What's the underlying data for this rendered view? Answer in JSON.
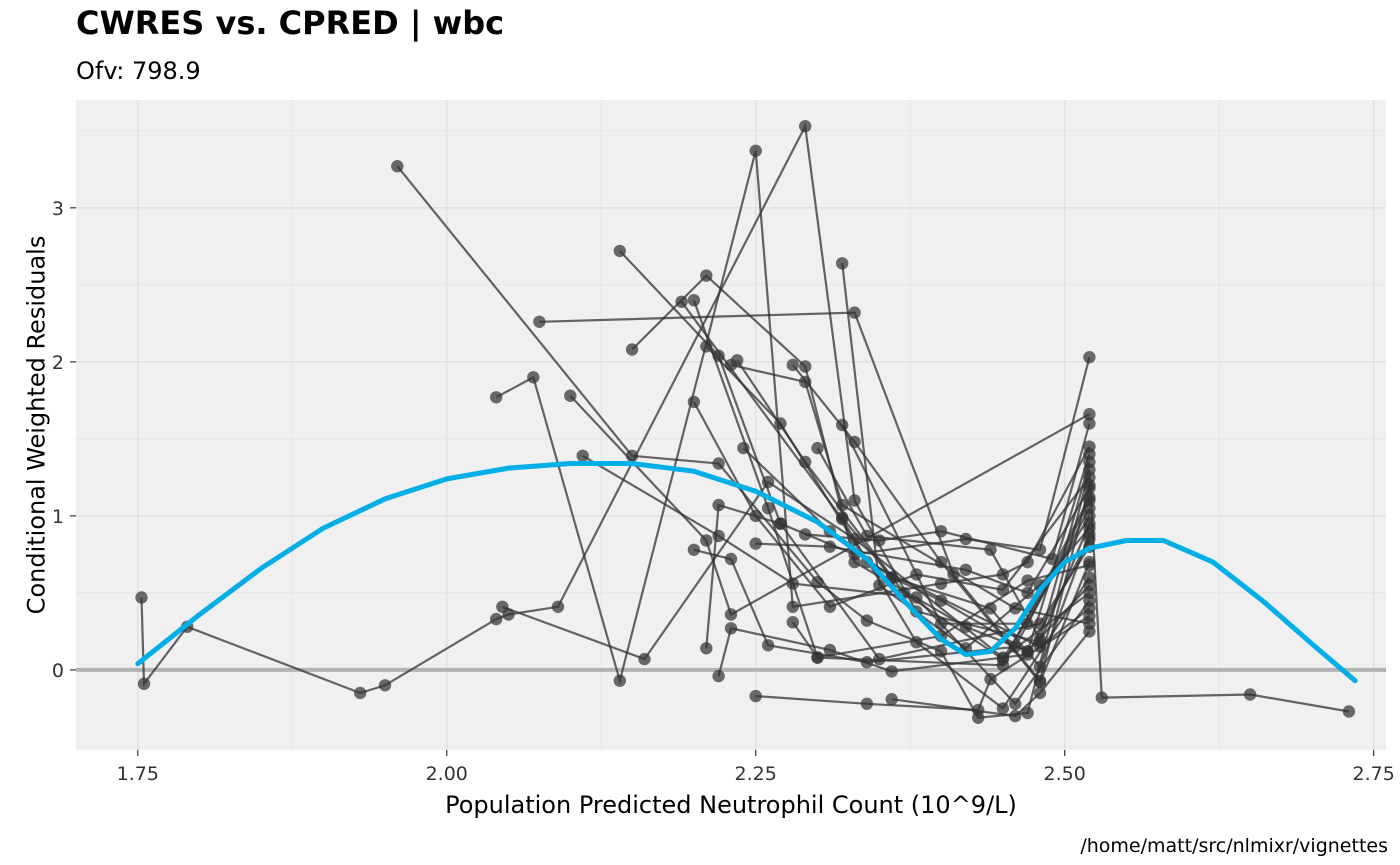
{
  "chart_data": {
    "type": "scatter",
    "title": "CWRES vs. CPRED | wbc",
    "subtitle": "Ofv: 798.9",
    "xlabel": "Population Predicted Neutrophil Count (10^9/L)",
    "ylabel": "Conditional Weighted Residuals",
    "caption": "/home/matt/src/nlmixr/vignettes",
    "xlim": [
      1.7,
      2.76
    ],
    "ylim": [
      -0.52,
      3.7
    ],
    "x_ticks": [
      1.75,
      2.0,
      2.25,
      2.5,
      2.75
    ],
    "x_tick_labels": [
      "1.75",
      "2.00",
      "2.25",
      "2.50",
      "2.75"
    ],
    "y_ticks": [
      0,
      1,
      2,
      3
    ],
    "y_tick_labels": [
      "0",
      "1",
      "2",
      "3"
    ],
    "grid": true,
    "reference_line_y": 0,
    "colors": {
      "panel_background": "#f0f0f0",
      "grid": "#e0e0e0",
      "points": "#333333",
      "lines": "#333333",
      "smooth": "#00aee8",
      "reference_line": "#b3b3b3"
    },
    "series": [
      {
        "points": [
          [
            1.753,
            0.47
          ],
          [
            1.755,
            -0.09
          ],
          [
            1.79,
            0.28
          ],
          [
            1.93,
            -0.15
          ],
          [
            1.95,
            -0.1
          ],
          [
            2.04,
            0.33
          ],
          [
            2.05,
            0.36
          ],
          [
            2.09,
            0.41
          ],
          [
            2.29,
            3.53
          ],
          [
            2.33,
            1.1
          ],
          [
            2.38,
            0.38
          ],
          [
            2.48,
            0.18
          ],
          [
            2.52,
            0.95
          ]
        ]
      },
      {
        "points": [
          [
            1.96,
            3.27
          ],
          [
            2.15,
            1.39
          ],
          [
            2.22,
            1.34
          ],
          [
            2.3,
            0.57
          ],
          [
            2.34,
            0.32
          ],
          [
            2.4,
            0.12
          ],
          [
            2.43,
            -0.31
          ],
          [
            2.47,
            -0.28
          ],
          [
            2.52,
            1.3
          ],
          [
            2.53,
            -0.18
          ],
          [
            2.65,
            -0.16
          ],
          [
            2.73,
            -0.27
          ]
        ]
      },
      {
        "points": [
          [
            2.04,
            1.77
          ],
          [
            2.07,
            1.9
          ],
          [
            2.14,
            -0.07
          ],
          [
            2.25,
            3.37
          ],
          [
            2.28,
            0.41
          ],
          [
            2.4,
            0.56
          ],
          [
            2.45,
            0.62
          ],
          [
            2.47,
            0.7
          ],
          [
            2.52,
            1.45
          ]
        ]
      },
      {
        "points": [
          [
            2.045,
            0.41
          ],
          [
            2.16,
            0.07
          ],
          [
            2.26,
            1.22
          ],
          [
            2.33,
            0.85
          ],
          [
            2.45,
            0.08
          ],
          [
            2.52,
            0.5
          ]
        ]
      },
      {
        "points": [
          [
            2.075,
            2.26
          ],
          [
            2.33,
            2.32
          ],
          [
            2.41,
            0.62
          ],
          [
            2.48,
            -0.07
          ],
          [
            2.52,
            1.2
          ]
        ]
      },
      {
        "points": [
          [
            2.1,
            1.78
          ],
          [
            2.21,
            0.84
          ],
          [
            2.23,
            0.36
          ],
          [
            2.52,
            1.66
          ]
        ]
      },
      {
        "points": [
          [
            2.14,
            2.72
          ],
          [
            2.22,
            2.04
          ],
          [
            2.27,
            0.95
          ],
          [
            2.35,
            0.07
          ],
          [
            2.48,
            0.3
          ],
          [
            2.52,
            0.8
          ]
        ]
      },
      {
        "points": [
          [
            2.15,
            2.08
          ],
          [
            2.21,
            2.56
          ],
          [
            2.29,
            1.97
          ],
          [
            2.33,
            0.7
          ],
          [
            2.42,
            0.28
          ],
          [
            2.47,
            0.12
          ],
          [
            2.52,
            1.4
          ]
        ]
      },
      {
        "points": [
          [
            2.19,
            2.39
          ],
          [
            2.32,
            0.98
          ],
          [
            2.38,
            0.18
          ],
          [
            2.45,
            -0.25
          ],
          [
            2.52,
            0.6
          ]
        ]
      },
      {
        "points": [
          [
            2.2,
            2.4
          ],
          [
            2.26,
            1.05
          ],
          [
            2.3,
            0.08
          ],
          [
            2.45,
            0.03
          ],
          [
            2.52,
            1.12
          ]
        ]
      },
      {
        "points": [
          [
            2.2,
            1.74
          ],
          [
            2.25,
            1.0
          ],
          [
            2.31,
            0.41
          ],
          [
            2.38,
            0.62
          ],
          [
            2.45,
            0.52
          ],
          [
            2.52,
            1.25
          ]
        ]
      },
      {
        "points": [
          [
            2.21,
            2.1
          ],
          [
            2.27,
            1.6
          ],
          [
            2.34,
            0.7
          ],
          [
            2.48,
            0.15
          ],
          [
            2.52,
            0.4
          ]
        ]
      },
      {
        "points": [
          [
            2.23,
            1.98
          ],
          [
            2.29,
            1.87
          ],
          [
            2.32,
            1.07
          ],
          [
            2.46,
            0.4
          ],
          [
            2.52,
            0.3
          ]
        ]
      },
      {
        "points": [
          [
            2.235,
            2.01
          ],
          [
            2.29,
            1.35
          ],
          [
            2.37,
            0.5
          ],
          [
            2.45,
            0.07
          ],
          [
            2.52,
            1.0
          ]
        ]
      },
      {
        "points": [
          [
            2.28,
            1.98
          ],
          [
            2.33,
            1.48
          ],
          [
            2.4,
            0.7
          ],
          [
            2.48,
            -0.08
          ],
          [
            2.52,
            0.7
          ]
        ]
      },
      {
        "points": [
          [
            2.32,
            2.64
          ],
          [
            2.35,
            0.55
          ],
          [
            2.42,
            0.14
          ],
          [
            2.48,
            0.55
          ],
          [
            2.52,
            0.92
          ]
        ]
      },
      {
        "points": [
          [
            2.32,
            1.59
          ],
          [
            2.4,
            0.3
          ],
          [
            2.47,
            0.3
          ],
          [
            2.52,
            1.1
          ]
        ]
      },
      {
        "points": [
          [
            2.3,
            1.44
          ],
          [
            2.34,
            0.87
          ],
          [
            2.44,
            0.78
          ],
          [
            2.48,
            0.2
          ],
          [
            2.52,
            1.35
          ]
        ]
      },
      {
        "points": [
          [
            2.24,
            1.44
          ],
          [
            2.31,
            0.9
          ],
          [
            2.36,
            0.6
          ],
          [
            2.4,
            0.45
          ],
          [
            2.47,
            0.12
          ],
          [
            2.52,
            0.55
          ]
        ]
      },
      {
        "points": [
          [
            2.11,
            1.39
          ],
          [
            2.22,
            0.87
          ],
          [
            2.28,
            0.56
          ],
          [
            2.38,
            0.47
          ],
          [
            2.46,
            -0.22
          ],
          [
            2.52,
            0.45
          ]
        ]
      },
      {
        "points": [
          [
            2.2,
            0.78
          ],
          [
            2.23,
            0.72
          ],
          [
            2.26,
            0.16
          ],
          [
            2.34,
            0.05
          ],
          [
            2.46,
            0.15
          ],
          [
            2.52,
            1.05
          ]
        ]
      },
      {
        "points": [
          [
            2.21,
            0.14
          ],
          [
            2.22,
            1.07
          ],
          [
            2.27,
            0.95
          ],
          [
            2.33,
            0.75
          ],
          [
            2.42,
            0.85
          ],
          [
            2.48,
            0.78
          ],
          [
            2.52,
            2.03
          ]
        ]
      },
      {
        "points": [
          [
            2.22,
            -0.04
          ],
          [
            2.23,
            0.27
          ],
          [
            2.31,
            0.13
          ],
          [
            2.36,
            -0.01
          ],
          [
            2.47,
            0.1
          ],
          [
            2.52,
            0.85
          ]
        ]
      },
      {
        "points": [
          [
            2.25,
            -0.17
          ],
          [
            2.34,
            -0.22
          ],
          [
            2.43,
            -0.26
          ],
          [
            2.44,
            -0.06
          ],
          [
            2.52,
            0.35
          ]
        ]
      },
      {
        "points": [
          [
            2.36,
            -0.19
          ],
          [
            2.46,
            -0.3
          ],
          [
            2.48,
            -0.15
          ],
          [
            2.52,
            0.25
          ]
        ]
      },
      {
        "points": [
          [
            2.28,
            0.31
          ],
          [
            2.3,
            0.08
          ],
          [
            2.4,
            0.22
          ],
          [
            2.47,
            0.58
          ],
          [
            2.52,
            0.68
          ]
        ]
      },
      {
        "points": [
          [
            2.32,
            0.99
          ],
          [
            2.36,
            0.6
          ],
          [
            2.44,
            0.4
          ],
          [
            2.48,
            0.02
          ],
          [
            2.52,
            0.88
          ]
        ]
      },
      {
        "points": [
          [
            2.29,
            0.88
          ],
          [
            2.35,
            0.84
          ],
          [
            2.4,
            0.9
          ],
          [
            2.49,
            0.72
          ],
          [
            2.52,
            1.6
          ]
        ]
      },
      {
        "points": [
          [
            2.25,
            0.82
          ],
          [
            2.31,
            0.8
          ],
          [
            2.42,
            0.65
          ],
          [
            2.47,
            0.5
          ],
          [
            2.52,
            1.18
          ]
        ]
      }
    ],
    "smooth": {
      "x": [
        1.75,
        1.8,
        1.85,
        1.9,
        1.95,
        2.0,
        2.05,
        2.1,
        2.15,
        2.2,
        2.25,
        2.3,
        2.34,
        2.37,
        2.4,
        2.42,
        2.44,
        2.46,
        2.48,
        2.5,
        2.52,
        2.55,
        2.58,
        2.62,
        2.66,
        2.7,
        2.735
      ],
      "y": [
        0.04,
        0.36,
        0.66,
        0.92,
        1.11,
        1.24,
        1.31,
        1.34,
        1.34,
        1.29,
        1.16,
        0.96,
        0.72,
        0.45,
        0.2,
        0.1,
        0.12,
        0.27,
        0.52,
        0.7,
        0.79,
        0.84,
        0.84,
        0.7,
        0.45,
        0.17,
        -0.07
      ]
    }
  }
}
